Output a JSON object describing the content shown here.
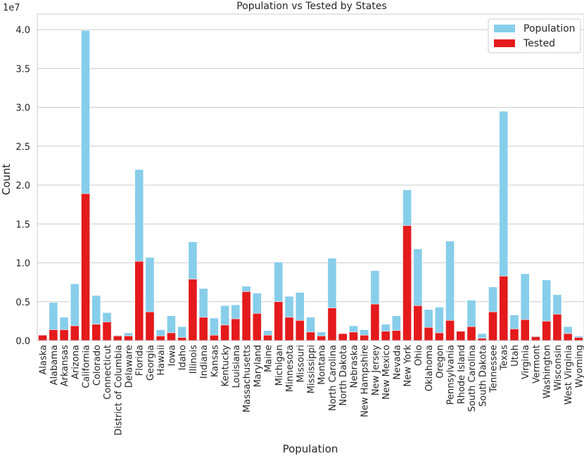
{
  "chart_data": {
    "type": "bar",
    "title": "Population vs Tested by States",
    "xlabel": "Population",
    "ylabel": "Count",
    "y_multiplier_label": "1e7",
    "ylim": [
      0,
      4.2
    ],
    "yticks": [
      "0.0",
      "0.5",
      "1.0",
      "1.5",
      "2.0",
      "2.5",
      "3.0",
      "3.5",
      "4.0"
    ],
    "legend_position": "top-right",
    "grid": true,
    "colors": {
      "population": "#87CEEB",
      "tested": "#E41A1C",
      "grid": "#CCCCCC",
      "frame": "#CCCCCC"
    },
    "categories": [
      "Alaska",
      "Alabama",
      "Arkansas",
      "Arizona",
      "California",
      "Colorado",
      "Connecticut",
      "District of Columbia",
      "Delaware",
      "Florida",
      "Georgia",
      "Hawaii",
      "Iowa",
      "Idaho",
      "Illinois",
      "Indiana",
      "Kansas",
      "Kentucky",
      "Louisiana",
      "Massachusetts",
      "Maryland",
      "Maine",
      "Michigan",
      "Minnesota",
      "Missouri",
      "Mississippi",
      "Montana",
      "North Carolina",
      "North Dakota",
      "Nebraska",
      "New Hampshire",
      "New Jersey",
      "New Mexico",
      "Nevada",
      "New York",
      "Ohio",
      "Oklahoma",
      "Oregon",
      "Pennsylvania",
      "Rhode Island",
      "South Carolina",
      "South Dakota",
      "Tennessee",
      "Texas",
      "Utah",
      "Virginia",
      "Vermont",
      "Washington",
      "Wisconsin",
      "West Virginia",
      "Wyoming"
    ],
    "series": [
      {
        "name": "Population",
        "values": [
          0.07,
          0.49,
          0.3,
          0.73,
          3.99,
          0.58,
          0.36,
          0.07,
          0.1,
          2.2,
          1.07,
          0.14,
          0.32,
          0.18,
          1.27,
          0.67,
          0.29,
          0.45,
          0.46,
          0.7,
          0.61,
          0.13,
          1.01,
          0.57,
          0.62,
          0.3,
          0.11,
          1.06,
          0.08,
          0.19,
          0.14,
          0.9,
          0.21,
          0.32,
          1.94,
          1.18,
          0.4,
          0.43,
          1.28,
          0.11,
          0.52,
          0.09,
          0.69,
          2.95,
          0.33,
          0.86,
          0.06,
          0.78,
          0.59,
          0.18,
          0.06
        ]
      },
      {
        "name": "Tested",
        "values": [
          0.07,
          0.14,
          0.14,
          0.19,
          1.89,
          0.21,
          0.24,
          0.06,
          0.06,
          1.02,
          0.37,
          0.06,
          0.1,
          0.04,
          0.79,
          0.3,
          0.07,
          0.2,
          0.28,
          0.63,
          0.35,
          0.07,
          0.5,
          0.3,
          0.26,
          0.11,
          0.06,
          0.42,
          0.09,
          0.11,
          0.07,
          0.47,
          0.12,
          0.13,
          1.48,
          0.45,
          0.17,
          0.1,
          0.26,
          0.12,
          0.18,
          0.03,
          0.37,
          0.83,
          0.15,
          0.27,
          0.05,
          0.25,
          0.34,
          0.09,
          0.04
        ]
      }
    ]
  }
}
